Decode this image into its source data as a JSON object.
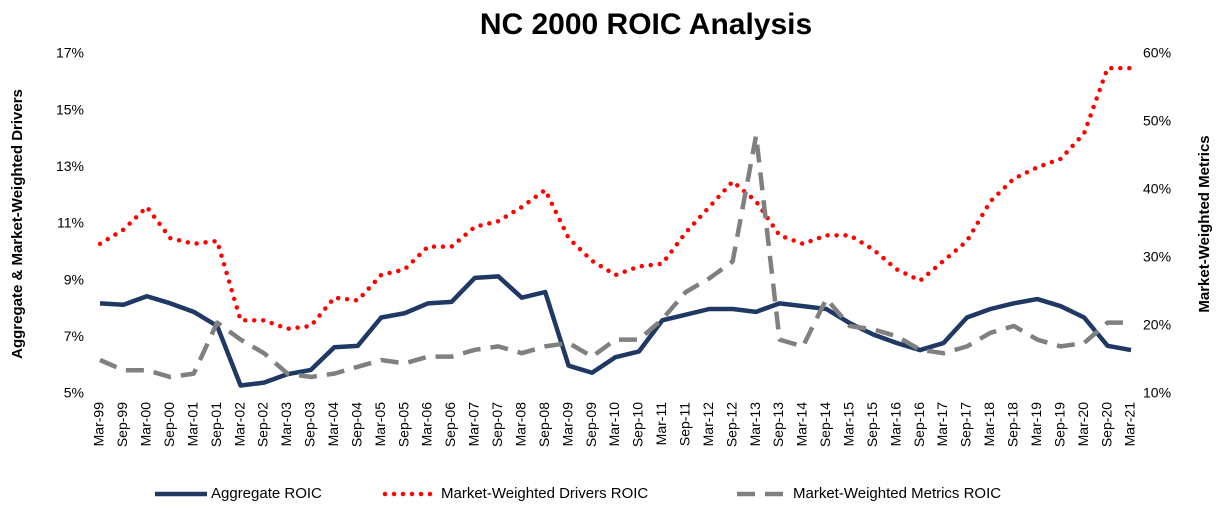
{
  "chart_data": {
    "type": "line",
    "title": "NC 2000 ROIC Analysis",
    "y_label": "Aggregate & Market-Weighted Drivers",
    "y2_label": "Market-Weighted Metrics",
    "categories": [
      "Mar-99",
      "Sep-99",
      "Mar-00",
      "Sep-00",
      "Mar-01",
      "Sep-01",
      "Mar-02",
      "Sep-02",
      "Mar-03",
      "Sep-03",
      "Mar-04",
      "Sep-04",
      "Mar-05",
      "Sep-05",
      "Mar-06",
      "Sep-06",
      "Mar-07",
      "Sep-07",
      "Mar-08",
      "Sep-08",
      "Mar-09",
      "Sep-09",
      "Mar-10",
      "Sep-10",
      "Mar-11",
      "Sep-11",
      "Mar-12",
      "Sep-12",
      "Mar-13",
      "Sep-13",
      "Mar-14",
      "Sep-14",
      "Mar-15",
      "Sep-15",
      "Mar-16",
      "Sep-16",
      "Mar-17",
      "Sep-17",
      "Mar-18",
      "Sep-18",
      "Mar-19",
      "Sep-19",
      "Mar-20",
      "Sep-20",
      "Mar-21"
    ],
    "series": [
      {
        "name": "Aggregate ROIC",
        "color": "#1f3864",
        "style": "solid",
        "axis": "y",
        "values": [
          8.2,
          8.15,
          8.45,
          8.2,
          7.9,
          7.4,
          5.3,
          5.4,
          5.7,
          5.85,
          6.65,
          6.7,
          7.7,
          7.85,
          8.2,
          8.25,
          9.1,
          9.15,
          8.4,
          8.6,
          6.0,
          5.75,
          6.3,
          6.5,
          7.6,
          7.8,
          8.0,
          8.0,
          7.9,
          8.2,
          8.1,
          8.0,
          7.5,
          7.1,
          6.8,
          6.55,
          6.8,
          7.7,
          8.0,
          8.2,
          8.35,
          8.1,
          7.7,
          6.7,
          6.55
        ]
      },
      {
        "name": "Market-Weighted Drivers ROIC",
        "color": "#ff0000",
        "style": "dotted",
        "axis": "y",
        "values": [
          10.3,
          10.8,
          11.6,
          10.5,
          10.3,
          10.4,
          7.6,
          7.6,
          7.3,
          7.4,
          8.4,
          8.3,
          9.2,
          9.4,
          10.2,
          10.2,
          10.9,
          11.1,
          11.6,
          12.2,
          10.5,
          9.7,
          9.2,
          9.5,
          9.6,
          10.7,
          11.6,
          12.5,
          11.8,
          10.6,
          10.3,
          10.6,
          10.6,
          10.1,
          9.4,
          9.0,
          9.7,
          10.4,
          11.8,
          12.6,
          13.0,
          13.3,
          14.2,
          16.5,
          16.5
        ]
      },
      {
        "name": "Market-Weighted Metrics ROIC",
        "color": "#808080",
        "style": "dashed",
        "axis": "y2",
        "values": [
          15,
          13.5,
          13.5,
          12.5,
          13,
          20.5,
          18,
          16,
          13,
          12.5,
          13,
          14,
          15,
          14.5,
          15.5,
          15.5,
          16.5,
          17,
          16,
          17,
          17.5,
          15.5,
          18,
          18,
          21,
          25,
          27,
          29.5,
          48,
          18,
          17,
          24,
          20,
          19.5,
          18.5,
          16.5,
          16,
          17,
          19,
          20,
          18,
          17,
          17.5,
          20.5,
          20.5
        ]
      }
    ],
    "ylim": [
      5,
      17
    ],
    "yticks": [
      {
        "value": 5,
        "label": "5%"
      },
      {
        "value": 7,
        "label": "7%"
      },
      {
        "value": 9,
        "label": "9%"
      },
      {
        "value": 11,
        "label": "11%"
      },
      {
        "value": 13,
        "label": "13%"
      },
      {
        "value": 15,
        "label": "15%"
      },
      {
        "value": 17,
        "label": "17%"
      }
    ],
    "y2lim": [
      10,
      60
    ],
    "y2ticks": [
      {
        "value": 10,
        "label": "10%"
      },
      {
        "value": 20,
        "label": "20%"
      },
      {
        "value": 30,
        "label": "30%"
      },
      {
        "value": 40,
        "label": "40%"
      },
      {
        "value": 50,
        "label": "50%"
      },
      {
        "value": 60,
        "label": "60%"
      }
    ],
    "grid": false,
    "legend": "bottom"
  }
}
